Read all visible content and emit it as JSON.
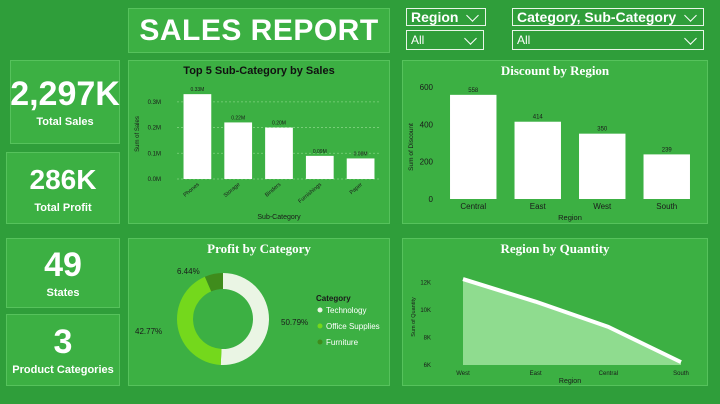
{
  "header": {
    "title": "SALES REPORT"
  },
  "slicers": {
    "region": {
      "label": "Region",
      "value": "All"
    },
    "category": {
      "label": "Category, Sub-Category",
      "value": "All"
    }
  },
  "kpis": {
    "total_sales": {
      "value": "2,297K",
      "caption": "Total Sales"
    },
    "total_profit": {
      "value": "286K",
      "caption": "Total Profit"
    },
    "states": {
      "value": "49",
      "caption": "States"
    },
    "product_categories": {
      "value": "3",
      "caption": "Product Categories"
    }
  },
  "colors": {
    "background": "#2f9e3a",
    "tile": "#3cb043",
    "bar": "#ffffff",
    "technology": "#eaf5e4",
    "office_supplies": "#74d81c",
    "furniture": "#3f8c1c",
    "area": "#8fdc8f"
  },
  "chart_data": [
    {
      "type": "bar",
      "title": "Top 5 Sub-Category by Sales",
      "xlabel": "Sub-Category",
      "ylabel": "Sum of Sales",
      "categories": [
        "Phones",
        "Storage",
        "Binders",
        "Furnishings",
        "Paper"
      ],
      "values": [
        0.33,
        0.22,
        0.2,
        0.09,
        0.08
      ],
      "labels": [
        "0.33M",
        "0.22M",
        "0.20M",
        "0.09M",
        "0.08M"
      ],
      "yticks": [
        "0.0M",
        "0.1M",
        "0.2M",
        "0.3M"
      ],
      "ylim": [
        0,
        0.35
      ],
      "grid": true
    },
    {
      "type": "bar",
      "title": "Discount by Region",
      "xlabel": "Region",
      "ylabel": "Sum of Discount",
      "categories": [
        "Central",
        "East",
        "West",
        "South"
      ],
      "values": [
        558,
        414,
        350,
        239
      ],
      "labels": [
        "558",
        "414",
        "350",
        "239"
      ],
      "yticks": [
        "0",
        "200",
        "400",
        "600"
      ],
      "ylim": [
        0,
        600
      ]
    },
    {
      "type": "pie",
      "title": "Profit by Category",
      "legend_title": "Category",
      "categories": [
        "Technology",
        "Office Supplies",
        "Furniture"
      ],
      "values": [
        50.79,
        42.77,
        6.44
      ],
      "labels": [
        "50.79%",
        "42.77%",
        "6.44%"
      ],
      "legend": "right"
    },
    {
      "type": "area",
      "title": "Region by Quantity",
      "xlabel": "Region",
      "ylabel": "Sum of Quantity",
      "categories": [
        "West",
        "East",
        "Central",
        "South"
      ],
      "values": [
        12266,
        10618,
        8780,
        6209
      ],
      "yticks": [
        "6K",
        "8K",
        "10K",
        "12K"
      ],
      "ylim": [
        6000,
        13000
      ]
    }
  ]
}
